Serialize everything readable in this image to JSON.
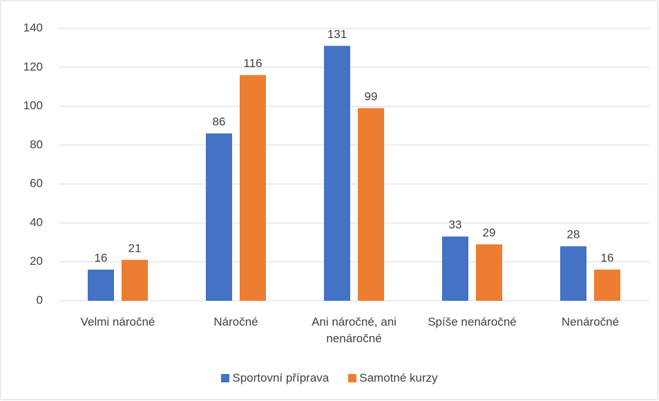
{
  "chart_data": {
    "type": "bar",
    "categories": [
      "Velmi náročné",
      "Náročné",
      "Ani náročné, ani nenáročné",
      "Spíše nenáročné",
      "Nenáročné"
    ],
    "series": [
      {
        "name": "Sportovní příprava",
        "color": "#4472c4",
        "values": [
          16,
          86,
          131,
          33,
          28
        ]
      },
      {
        "name": "Samotné kurzy",
        "color": "#ed7d31",
        "values": [
          21,
          116,
          99,
          29,
          16
        ]
      }
    ],
    "ylim": [
      0,
      140
    ],
    "yticks": [
      0,
      20,
      40,
      60,
      80,
      100,
      120,
      140
    ],
    "grid": true,
    "legend": "bottom"
  }
}
